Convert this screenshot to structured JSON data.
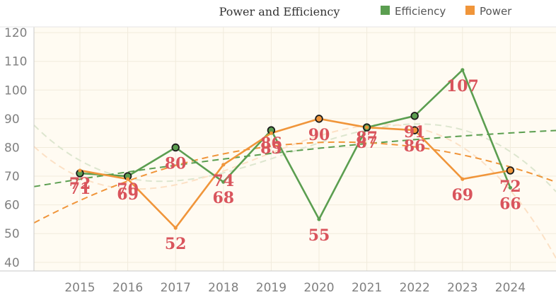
{
  "chart_data": {
    "type": "line",
    "title": "Power and Efficiency",
    "xlabel": "",
    "ylabel": "",
    "x": [
      "2015",
      "2016",
      "2017",
      "2018",
      "2019",
      "2020",
      "2021",
      "2022",
      "2023",
      "2024"
    ],
    "yticks": [
      "40",
      "50",
      "60",
      "70",
      "80",
      "90",
      "100",
      "110",
      "120"
    ],
    "ylim": [
      37,
      122
    ],
    "grid": true,
    "legend": "top-right",
    "series": [
      {
        "name": "Efficiency",
        "color": "#5b9e50",
        "values": [
          71,
          70,
          80,
          68,
          86,
          55,
          87,
          91,
          107,
          66
        ],
        "labels": [
          "71",
          "70",
          "80",
          "68",
          "86",
          "55",
          "87",
          "91",
          "107",
          "66"
        ]
      },
      {
        "name": "Power",
        "color": "#f0953a",
        "values": [
          72,
          69,
          52,
          74,
          85,
          90,
          87,
          86,
          69,
          72
        ],
        "labels": [
          "72",
          "69",
          "52",
          "74",
          "85",
          "90",
          "87",
          "86",
          "69",
          "72"
        ]
      }
    ],
    "colors": {
      "background": "#fffbf2",
      "grid": "#f1ebdc",
      "axis": "#c8c8c8",
      "label": "#d9545c",
      "efficiency_trend_light": "#dde6cf",
      "power_trend_light": "#fce1c6"
    }
  }
}
